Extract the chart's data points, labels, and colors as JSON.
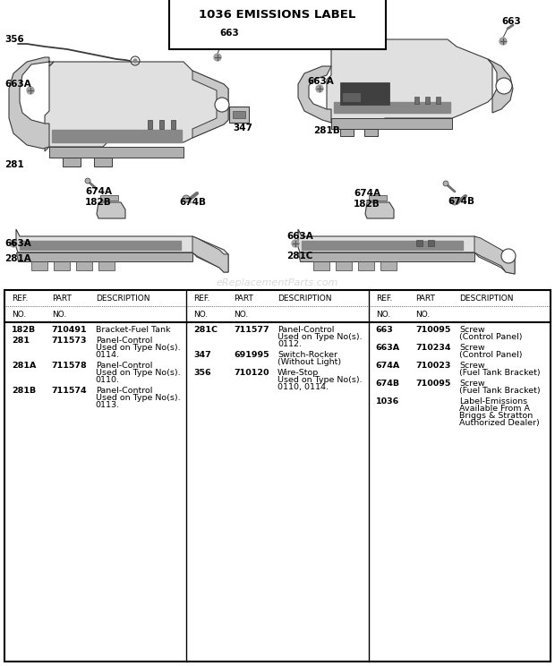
{
  "title": "1036 EMISSIONS LABEL",
  "bg_color": "#ffffff",
  "watermark": "eReplacementParts.com",
  "col1_rows": [
    {
      "ref": "182B",
      "part": "710491",
      "desc": "Bracket-Fuel Tank"
    },
    {
      "ref": "281",
      "part": "711573",
      "desc": "Panel-Control\nUsed on Type No(s).\n0114."
    },
    {
      "ref": "281A",
      "part": "711578",
      "desc": "Panel-Control\nUsed on Type No(s).\n0110."
    },
    {
      "ref": "281B",
      "part": "711574",
      "desc": "Panel-Control\nUsed on Type No(s).\n0113."
    }
  ],
  "col2_rows": [
    {
      "ref": "281C",
      "part": "711577",
      "desc": "Panel-Control\nUsed on Type No(s).\n0112."
    },
    {
      "ref": "347",
      "part": "691995",
      "desc": "Switch-Rocker\n(Without Light)"
    },
    {
      "ref": "356",
      "part": "710120",
      "desc": "Wire-Stop\nUsed on Type No(s).\n0110, 0114."
    }
  ],
  "col3_rows": [
    {
      "ref": "663",
      "part": "710095",
      "desc": "Screw\n(Control Panel)"
    },
    {
      "ref": "663A",
      "part": "710234",
      "desc": "Screw\n(Control Panel)"
    },
    {
      "ref": "674A",
      "part": "710023",
      "desc": "Screw\n(Fuel Tank Bracket)"
    },
    {
      "ref": "674B",
      "part": "710095",
      "desc": "Screw\n(Fuel Tank Bracket)"
    },
    {
      "ref": "1036",
      "part": "",
      "desc": "Label-Emissions\nAvailable From A\nBriggs & Stratton\nAuthorized Dealer)"
    }
  ]
}
